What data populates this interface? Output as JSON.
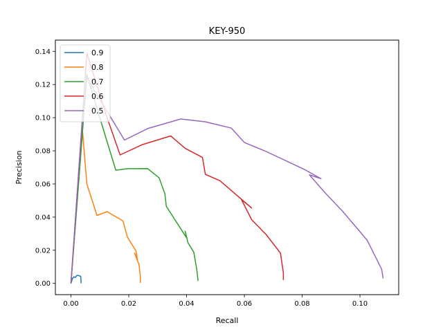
{
  "chart_data": {
    "type": "line",
    "title": "KEY-950",
    "xlabel": "Recall",
    "ylabel": "Precision",
    "xlim": [
      -0.0054,
      0.1134
    ],
    "ylim": [
      -0.0068,
      0.1468
    ],
    "xticks": [
      0.0,
      0.02,
      0.04,
      0.06,
      0.08,
      0.1
    ],
    "xtick_labels": [
      "0.00",
      "0.02",
      "0.04",
      "0.06",
      "0.08",
      "0.10"
    ],
    "yticks": [
      0.0,
      0.02,
      0.04,
      0.06,
      0.08,
      0.1,
      0.12,
      0.14
    ],
    "ytick_labels": [
      "0.00",
      "0.02",
      "0.04",
      "0.06",
      "0.08",
      "0.10",
      "0.12",
      "0.14"
    ],
    "grid": false,
    "legend_position": "top-left",
    "series": [
      {
        "name": "0.9",
        "color": "#1f77b4",
        "points": [
          [
            0.0,
            0.0
          ],
          [
            0.0005,
            0.0028
          ],
          [
            0.001,
            0.004
          ],
          [
            0.0015,
            0.0035
          ],
          [
            0.002,
            0.0047
          ],
          [
            0.0025,
            0.0048
          ],
          [
            0.003,
            0.0045
          ],
          [
            0.0034,
            0.0042
          ],
          [
            0.0035,
            0.0001
          ]
        ]
      },
      {
        "name": "0.8",
        "color": "#ff7f0e",
        "points": [
          [
            0.0,
            0.0
          ],
          [
            0.004,
            0.092
          ],
          [
            0.0055,
            0.06
          ],
          [
            0.009,
            0.041
          ],
          [
            0.0125,
            0.0433
          ],
          [
            0.018,
            0.0377
          ],
          [
            0.0195,
            0.028
          ],
          [
            0.0225,
            0.0195
          ],
          [
            0.023,
            0.0142
          ],
          [
            0.022,
            0.0183
          ],
          [
            0.0235,
            0.0115
          ],
          [
            0.024,
            0.0045
          ],
          [
            0.024,
            0.0003
          ]
        ]
      },
      {
        "name": "0.7",
        "color": "#2ca02c",
        "points": [
          [
            0.0,
            0.0
          ],
          [
            0.0055,
            0.126
          ],
          [
            0.011,
            0.094
          ],
          [
            0.0155,
            0.0683
          ],
          [
            0.0195,
            0.0692
          ],
          [
            0.0265,
            0.0693
          ],
          [
            0.0305,
            0.0637
          ],
          [
            0.0325,
            0.054
          ],
          [
            0.033,
            0.0465
          ],
          [
            0.04,
            0.0275
          ],
          [
            0.0395,
            0.0315
          ],
          [
            0.0405,
            0.0245
          ],
          [
            0.0425,
            0.0188
          ],
          [
            0.0435,
            0.0085
          ],
          [
            0.044,
            0.0015
          ]
        ]
      },
      {
        "name": "0.6",
        "color": "#d62728",
        "points": [
          [
            0.0,
            0.0
          ],
          [
            0.0055,
            0.139
          ],
          [
            0.0125,
            0.1
          ],
          [
            0.017,
            0.0775
          ],
          [
            0.0245,
            0.0836
          ],
          [
            0.0345,
            0.089
          ],
          [
            0.0395,
            0.0815
          ],
          [
            0.0455,
            0.076
          ],
          [
            0.0465,
            0.0658
          ],
          [
            0.0515,
            0.062
          ],
          [
            0.0575,
            0.053
          ],
          [
            0.0625,
            0.0455
          ],
          [
            0.059,
            0.0505
          ],
          [
            0.0625,
            0.0385
          ],
          [
            0.0675,
            0.0295
          ],
          [
            0.0725,
            0.0183
          ],
          [
            0.0735,
            0.0063
          ],
          [
            0.0735,
            0.002
          ]
        ]
      },
      {
        "name": "0.5",
        "color": "#9467bd",
        "points": [
          [
            0.0,
            0.0
          ],
          [
            0.005,
            0.1255
          ],
          [
            0.0185,
            0.0865
          ],
          [
            0.0265,
            0.0934
          ],
          [
            0.038,
            0.0992
          ],
          [
            0.0465,
            0.0975
          ],
          [
            0.0555,
            0.0937
          ],
          [
            0.06,
            0.085
          ],
          [
            0.067,
            0.08
          ],
          [
            0.0805,
            0.069
          ],
          [
            0.0865,
            0.0632
          ],
          [
            0.0825,
            0.0655
          ],
          [
            0.088,
            0.0545
          ],
          [
            0.094,
            0.0435
          ],
          [
            0.1025,
            0.026
          ],
          [
            0.1075,
            0.0085
          ],
          [
            0.108,
            0.003
          ]
        ]
      }
    ]
  }
}
